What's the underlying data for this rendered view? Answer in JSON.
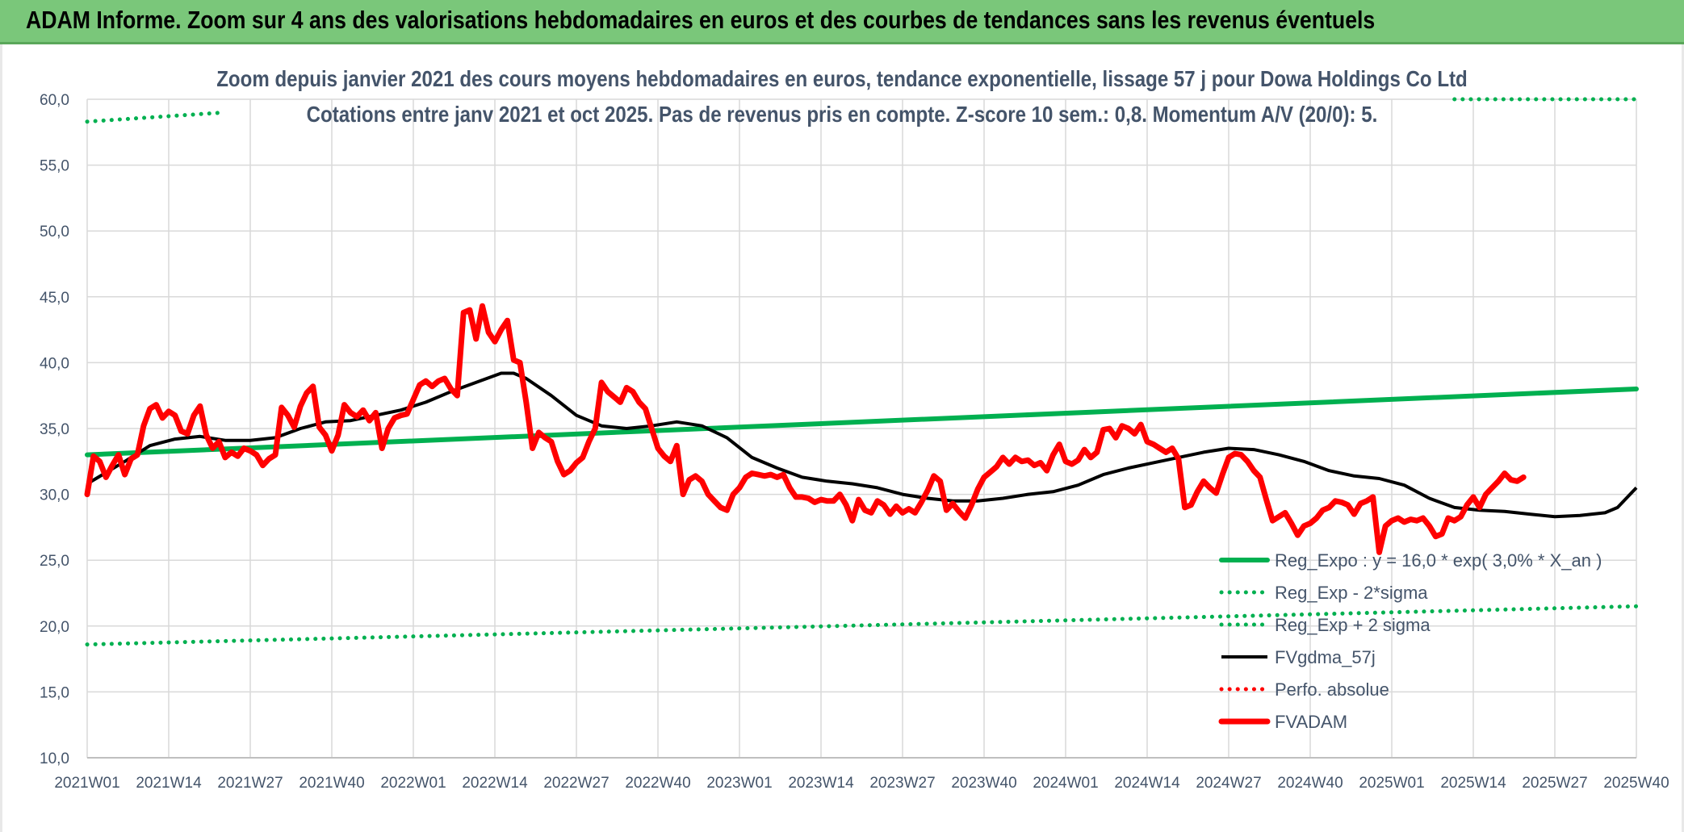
{
  "header": {
    "title": "ADAM Informe. Zoom sur 4 ans des valorisations hebdomadaires en euros et des courbes de tendances sans les revenus éventuels"
  },
  "chart_data": {
    "type": "line",
    "title_line1": "Zoom depuis janvier 2021 des cours moyens hebdomadaires en euros, tendance exponentielle, lissage 57 j pour Dowa Holdings Co Ltd",
    "title_line2": "Cotations entre janv 2021 et oct 2025. Pas de revenus pris en compte. Z-score 10 sem.: 0,8. Momentum A/V (20/0): 5.",
    "ylim": [
      10,
      60
    ],
    "y_ticks": [
      "10,0",
      "15,0",
      "20,0",
      "25,0",
      "30,0",
      "35,0",
      "40,0",
      "45,0",
      "50,0",
      "55,0",
      "60,0"
    ],
    "x_ticks": [
      "2021W01",
      "2021W14",
      "2021W27",
      "2021W40",
      "2022W01",
      "2022W14",
      "2022W27",
      "2022W40",
      "2023W01",
      "2023W14",
      "2023W27",
      "2023W40",
      "2024W01",
      "2024W14",
      "2024W27",
      "2024W40",
      "2025W01",
      "2025W14",
      "2025W27",
      "2025W40"
    ],
    "grid": true,
    "legend_position": "bottom-right",
    "series": [
      {
        "name": "Reg_Expo : y = 16,0 * exp( 3,0% *  X_an )",
        "color": "#00b050",
        "style": "solid-thick",
        "points": [
          [
            0,
            33.0
          ],
          [
            247,
            38.0
          ]
        ]
      },
      {
        "name": "Reg_Exp - 2*sigma",
        "color": "#00b050",
        "style": "dotted",
        "points": [
          [
            0,
            18.6
          ],
          [
            247,
            21.5
          ]
        ]
      },
      {
        "name": "Reg_Exp + 2 sigma",
        "color": "#00b050",
        "style": "dotted",
        "points": [
          [
            0,
            58.3
          ],
          [
            22,
            59.0
          ]
        ],
        "points_b": [
          [
            218,
            60.0
          ],
          [
            247,
            60.0
          ]
        ]
      },
      {
        "name": "FVgdma_57j",
        "color": "#000000",
        "style": "solid",
        "points": [
          [
            0,
            30.8
          ],
          [
            6,
            32.5
          ],
          [
            10,
            33.7
          ],
          [
            14,
            34.2
          ],
          [
            18,
            34.4
          ],
          [
            22,
            34.1
          ],
          [
            26,
            34.1
          ],
          [
            30,
            34.3
          ],
          [
            34,
            35.0
          ],
          [
            38,
            35.5
          ],
          [
            42,
            35.6
          ],
          [
            46,
            36.0
          ],
          [
            50,
            36.4
          ],
          [
            54,
            37.0
          ],
          [
            58,
            37.8
          ],
          [
            62,
            38.5
          ],
          [
            66,
            39.2
          ],
          [
            68,
            39.2
          ],
          [
            70,
            38.8
          ],
          [
            74,
            37.5
          ],
          [
            78,
            36.0
          ],
          [
            82,
            35.2
          ],
          [
            86,
            35.0
          ],
          [
            90,
            35.2
          ],
          [
            94,
            35.5
          ],
          [
            98,
            35.2
          ],
          [
            102,
            34.3
          ],
          [
            106,
            32.8
          ],
          [
            110,
            32.0
          ],
          [
            114,
            31.3
          ],
          [
            118,
            31.0
          ],
          [
            122,
            30.8
          ],
          [
            126,
            30.5
          ],
          [
            130,
            30.0
          ],
          [
            134,
            29.7
          ],
          [
            138,
            29.5
          ],
          [
            142,
            29.5
          ],
          [
            146,
            29.7
          ],
          [
            150,
            30.0
          ],
          [
            154,
            30.2
          ],
          [
            158,
            30.7
          ],
          [
            162,
            31.5
          ],
          [
            166,
            32.0
          ],
          [
            170,
            32.4
          ],
          [
            174,
            32.8
          ],
          [
            178,
            33.2
          ],
          [
            182,
            33.5
          ],
          [
            186,
            33.4
          ],
          [
            190,
            33.0
          ],
          [
            194,
            32.5
          ],
          [
            198,
            31.8
          ],
          [
            202,
            31.4
          ],
          [
            206,
            31.2
          ],
          [
            210,
            30.7
          ],
          [
            214,
            29.7
          ],
          [
            218,
            29.0
          ],
          [
            222,
            28.8
          ],
          [
            226,
            28.7
          ],
          [
            230,
            28.5
          ],
          [
            234,
            28.3
          ],
          [
            238,
            28.4
          ],
          [
            242,
            28.6
          ],
          [
            244,
            29.0
          ],
          [
            247,
            30.5
          ]
        ]
      },
      {
        "name": "Perfo. absolue",
        "color": "#ff0000",
        "style": "dotted",
        "points": []
      },
      {
        "name": "FVADAM",
        "color": "#ff0000",
        "style": "solid-thick",
        "points": [
          [
            0,
            30.0
          ],
          [
            1,
            32.9
          ],
          [
            2,
            32.5
          ],
          [
            3,
            31.3
          ],
          [
            4,
            32.2
          ],
          [
            5,
            33.0
          ],
          [
            6,
            31.5
          ],
          [
            7,
            32.7
          ],
          [
            8,
            33.0
          ],
          [
            9,
            35.2
          ],
          [
            10,
            36.5
          ],
          [
            11,
            36.8
          ],
          [
            12,
            35.8
          ],
          [
            13,
            36.3
          ],
          [
            14,
            36.0
          ],
          [
            15,
            34.8
          ],
          [
            16,
            34.6
          ],
          [
            17,
            36.0
          ],
          [
            18,
            36.7
          ],
          [
            19,
            34.5
          ],
          [
            20,
            33.5
          ],
          [
            21,
            34.0
          ],
          [
            22,
            32.8
          ],
          [
            23,
            33.2
          ],
          [
            24,
            32.9
          ],
          [
            25,
            33.5
          ],
          [
            26,
            33.3
          ],
          [
            27,
            33.0
          ],
          [
            28,
            32.2
          ],
          [
            29,
            32.7
          ],
          [
            30,
            33.0
          ],
          [
            31,
            36.6
          ],
          [
            32,
            36.0
          ],
          [
            33,
            35.1
          ],
          [
            34,
            36.7
          ],
          [
            35,
            37.7
          ],
          [
            36,
            38.2
          ],
          [
            37,
            35.1
          ],
          [
            38,
            34.5
          ],
          [
            39,
            33.3
          ],
          [
            40,
            34.5
          ],
          [
            41,
            36.8
          ],
          [
            42,
            36.2
          ],
          [
            43,
            35.9
          ],
          [
            44,
            36.4
          ],
          [
            45,
            35.6
          ],
          [
            46,
            36.2
          ],
          [
            47,
            33.5
          ],
          [
            48,
            35.0
          ],
          [
            49,
            35.8
          ],
          [
            50,
            36.0
          ],
          [
            51,
            36.1
          ],
          [
            52,
            37.2
          ],
          [
            53,
            38.3
          ],
          [
            54,
            38.6
          ],
          [
            55,
            38.2
          ],
          [
            56,
            38.6
          ],
          [
            57,
            38.8
          ],
          [
            58,
            38.0
          ],
          [
            59,
            37.5
          ],
          [
            60,
            43.8
          ],
          [
            61,
            44.0
          ],
          [
            62,
            41.8
          ],
          [
            63,
            44.3
          ],
          [
            64,
            42.3
          ],
          [
            65,
            41.6
          ],
          [
            66,
            42.5
          ],
          [
            67,
            43.2
          ],
          [
            68,
            40.2
          ],
          [
            69,
            40.0
          ],
          [
            70,
            37.0
          ],
          [
            71,
            33.5
          ],
          [
            72,
            34.7
          ],
          [
            73,
            34.3
          ],
          [
            74,
            34.0
          ],
          [
            75,
            32.5
          ],
          [
            76,
            31.5
          ],
          [
            77,
            31.8
          ],
          [
            78,
            32.4
          ],
          [
            79,
            32.8
          ],
          [
            80,
            34.0
          ],
          [
            81,
            35.0
          ],
          [
            82,
            38.5
          ],
          [
            83,
            37.8
          ],
          [
            84,
            37.4
          ],
          [
            85,
            37.0
          ],
          [
            86,
            38.1
          ],
          [
            87,
            37.8
          ],
          [
            88,
            37.0
          ],
          [
            89,
            36.5
          ],
          [
            90,
            35.0
          ],
          [
            91,
            33.5
          ],
          [
            92,
            32.9
          ],
          [
            93,
            32.5
          ],
          [
            94,
            33.7
          ],
          [
            95,
            30.0
          ],
          [
            96,
            31.1
          ],
          [
            97,
            31.4
          ],
          [
            98,
            31.0
          ],
          [
            99,
            30.0
          ],
          [
            100,
            29.5
          ],
          [
            101,
            29.0
          ],
          [
            102,
            28.8
          ],
          [
            103,
            30.0
          ],
          [
            104,
            30.5
          ],
          [
            105,
            31.3
          ],
          [
            106,
            31.6
          ],
          [
            107,
            31.5
          ],
          [
            108,
            31.4
          ],
          [
            109,
            31.5
          ],
          [
            110,
            31.3
          ],
          [
            111,
            31.5
          ],
          [
            112,
            30.5
          ],
          [
            113,
            29.8
          ],
          [
            114,
            29.8
          ],
          [
            115,
            29.7
          ],
          [
            116,
            29.4
          ],
          [
            117,
            29.6
          ],
          [
            118,
            29.5
          ],
          [
            119,
            29.5
          ],
          [
            120,
            30.0
          ],
          [
            121,
            29.2
          ],
          [
            122,
            28.0
          ],
          [
            123,
            29.6
          ],
          [
            124,
            28.8
          ],
          [
            125,
            28.6
          ],
          [
            126,
            29.5
          ],
          [
            127,
            29.2
          ],
          [
            128,
            28.5
          ],
          [
            129,
            29.1
          ],
          [
            130,
            28.6
          ],
          [
            131,
            28.9
          ],
          [
            132,
            28.6
          ],
          [
            133,
            29.4
          ],
          [
            134,
            30.3
          ],
          [
            135,
            31.4
          ],
          [
            136,
            31.0
          ],
          [
            137,
            28.8
          ],
          [
            138,
            29.3
          ],
          [
            139,
            28.7
          ],
          [
            140,
            28.2
          ],
          [
            141,
            29.2
          ],
          [
            142,
            30.4
          ],
          [
            143,
            31.3
          ],
          [
            144,
            31.7
          ],
          [
            145,
            32.1
          ],
          [
            146,
            32.8
          ],
          [
            147,
            32.3
          ],
          [
            148,
            32.8
          ],
          [
            149,
            32.5
          ],
          [
            150,
            32.6
          ],
          [
            151,
            32.2
          ],
          [
            152,
            32.4
          ],
          [
            153,
            31.8
          ],
          [
            154,
            33.0
          ],
          [
            155,
            33.8
          ],
          [
            156,
            32.5
          ],
          [
            157,
            32.3
          ],
          [
            158,
            32.6
          ],
          [
            159,
            33.4
          ],
          [
            160,
            32.8
          ],
          [
            161,
            33.2
          ],
          [
            162,
            34.9
          ],
          [
            163,
            35.0
          ],
          [
            164,
            34.3
          ],
          [
            165,
            35.2
          ],
          [
            166,
            35.0
          ],
          [
            167,
            34.6
          ],
          [
            168,
            35.3
          ],
          [
            169,
            34.0
          ],
          [
            170,
            33.8
          ],
          [
            171,
            33.5
          ],
          [
            172,
            33.2
          ],
          [
            173,
            33.5
          ],
          [
            174,
            32.7
          ],
          [
            175,
            29.0
          ],
          [
            176,
            29.2
          ],
          [
            177,
            30.2
          ],
          [
            178,
            31.0
          ],
          [
            179,
            30.5
          ],
          [
            180,
            30.1
          ],
          [
            181,
            31.5
          ],
          [
            182,
            32.8
          ],
          [
            183,
            33.1
          ],
          [
            184,
            33.0
          ],
          [
            185,
            32.5
          ],
          [
            186,
            31.8
          ],
          [
            187,
            31.3
          ],
          [
            188,
            29.6
          ],
          [
            189,
            28.0
          ],
          [
            190,
            28.3
          ],
          [
            191,
            28.6
          ],
          [
            192,
            27.8
          ],
          [
            193,
            26.9
          ],
          [
            194,
            27.6
          ],
          [
            195,
            27.8
          ],
          [
            196,
            28.2
          ],
          [
            197,
            28.8
          ],
          [
            198,
            29.0
          ],
          [
            199,
            29.5
          ],
          [
            200,
            29.4
          ],
          [
            201,
            29.2
          ],
          [
            202,
            28.5
          ],
          [
            203,
            29.3
          ],
          [
            204,
            29.5
          ],
          [
            205,
            29.8
          ],
          [
            206,
            25.6
          ],
          [
            207,
            27.6
          ],
          [
            208,
            28.0
          ],
          [
            209,
            28.2
          ],
          [
            210,
            27.9
          ],
          [
            211,
            28.1
          ],
          [
            212,
            28.0
          ],
          [
            213,
            28.2
          ],
          [
            214,
            27.6
          ],
          [
            215,
            26.8
          ],
          [
            216,
            27.0
          ],
          [
            217,
            28.2
          ],
          [
            218,
            28.0
          ],
          [
            219,
            28.3
          ],
          [
            220,
            29.2
          ],
          [
            221,
            29.8
          ],
          [
            222,
            29.0
          ],
          [
            223,
            30.0
          ],
          [
            224,
            30.5
          ],
          [
            225,
            31.0
          ],
          [
            226,
            31.6
          ],
          [
            227,
            31.1
          ],
          [
            228,
            31.0
          ],
          [
            229,
            31.3
          ]
        ]
      }
    ]
  }
}
